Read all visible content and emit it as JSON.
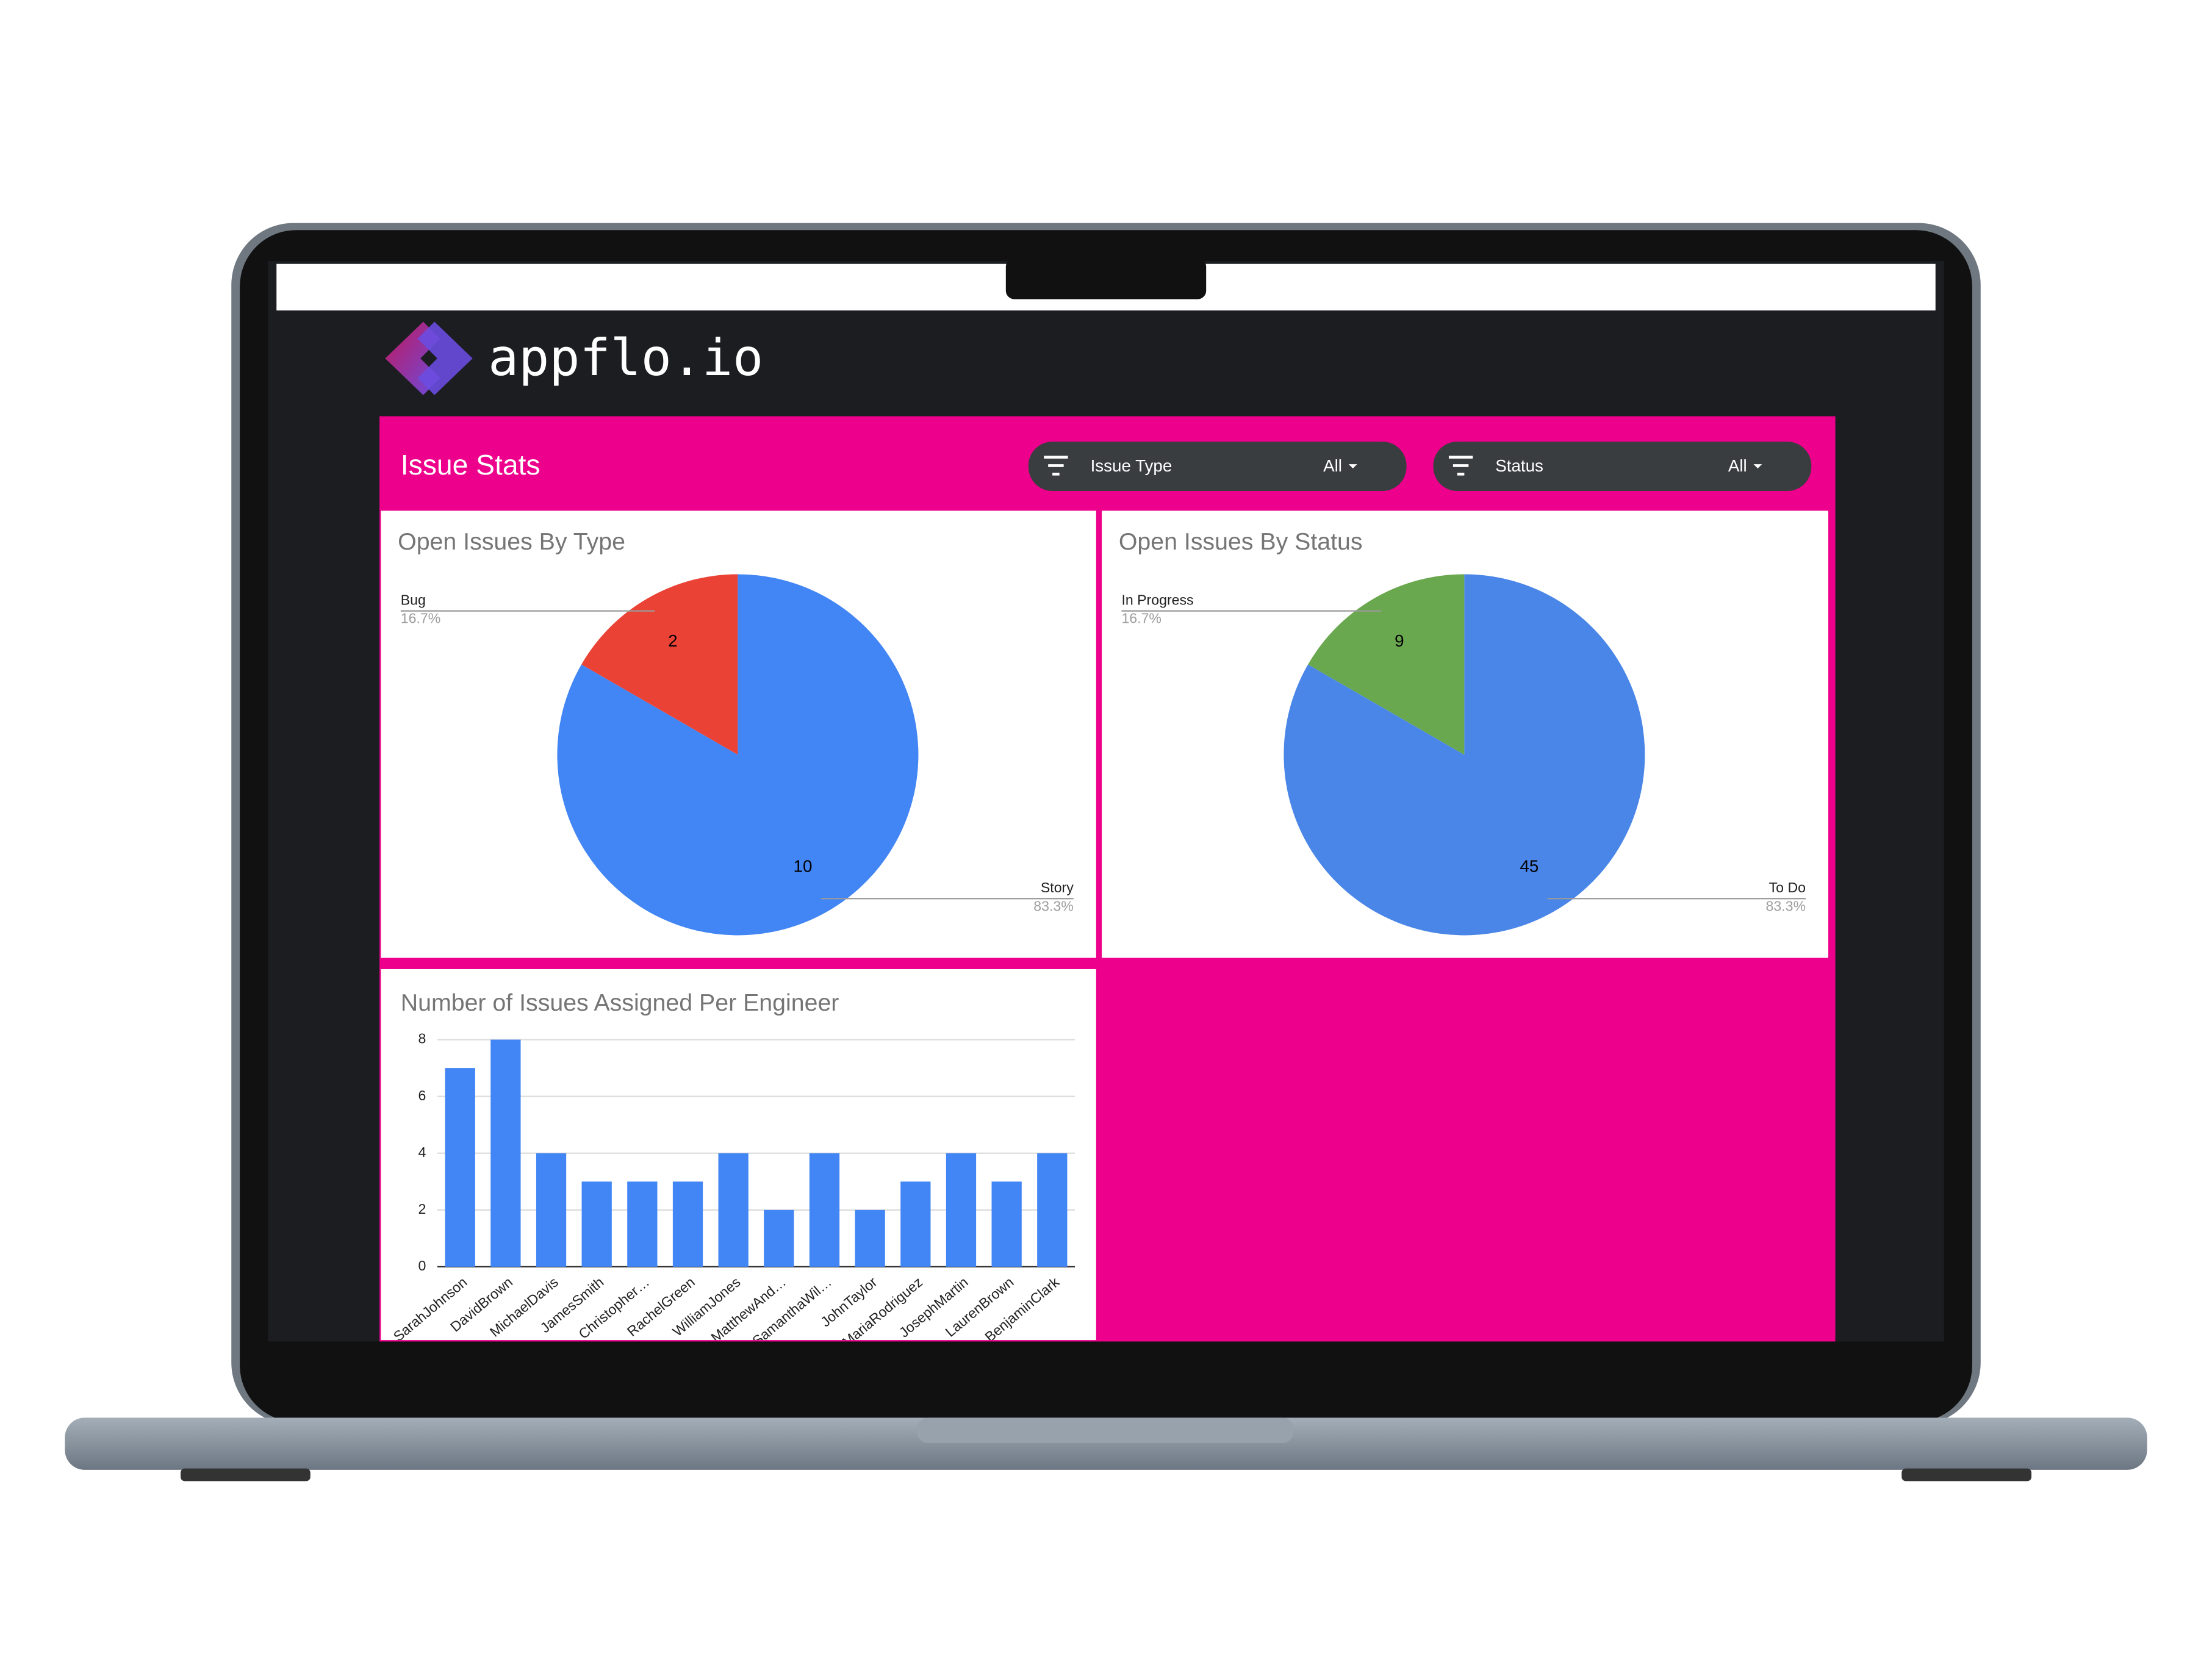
{
  "header": {
    "brand": "appflo.io",
    "title": "Issue Stats"
  },
  "filters": [
    {
      "label": "Issue Type",
      "value": "All"
    },
    {
      "label": "Status",
      "value": "All"
    }
  ],
  "chart_data": [
    {
      "type": "pie",
      "title": "Open Issues By Type",
      "categories": [
        "Bug",
        "Story"
      ],
      "values": [
        2,
        10
      ],
      "percent_labels": [
        "16.7%",
        "83.3%"
      ],
      "colors": [
        "#ea4335",
        "#4285f4"
      ]
    },
    {
      "type": "pie",
      "title": "Open Issues By Status",
      "categories": [
        "In Progress",
        "To Do"
      ],
      "values": [
        9,
        45
      ],
      "percent_labels": [
        "16.7%",
        "83.3%"
      ],
      "colors": [
        "#6aa84f",
        "#4a86e8"
      ]
    },
    {
      "type": "bar",
      "title": "Number of Issues Assigned Per Engineer",
      "categories": [
        "SarahJohnson",
        "DavidBrown",
        "MichaelDavis",
        "JamesSmith",
        "Christopher…",
        "RachelGreen",
        "WilliamJones",
        "MatthewAnd…",
        "SamanthaWil…",
        "JohnTaylor",
        "MariaRodriguez",
        "JosephMartin",
        "LaurenBrown",
        "BenjaminClark"
      ],
      "values": [
        7,
        8,
        4,
        3,
        3,
        3,
        4,
        2,
        4,
        2,
        3,
        4,
        3,
        4
      ],
      "color": "#4285f4",
      "ylim": [
        0,
        8
      ],
      "yticks": [
        0,
        2,
        4,
        6,
        8
      ],
      "grid": true
    }
  ]
}
